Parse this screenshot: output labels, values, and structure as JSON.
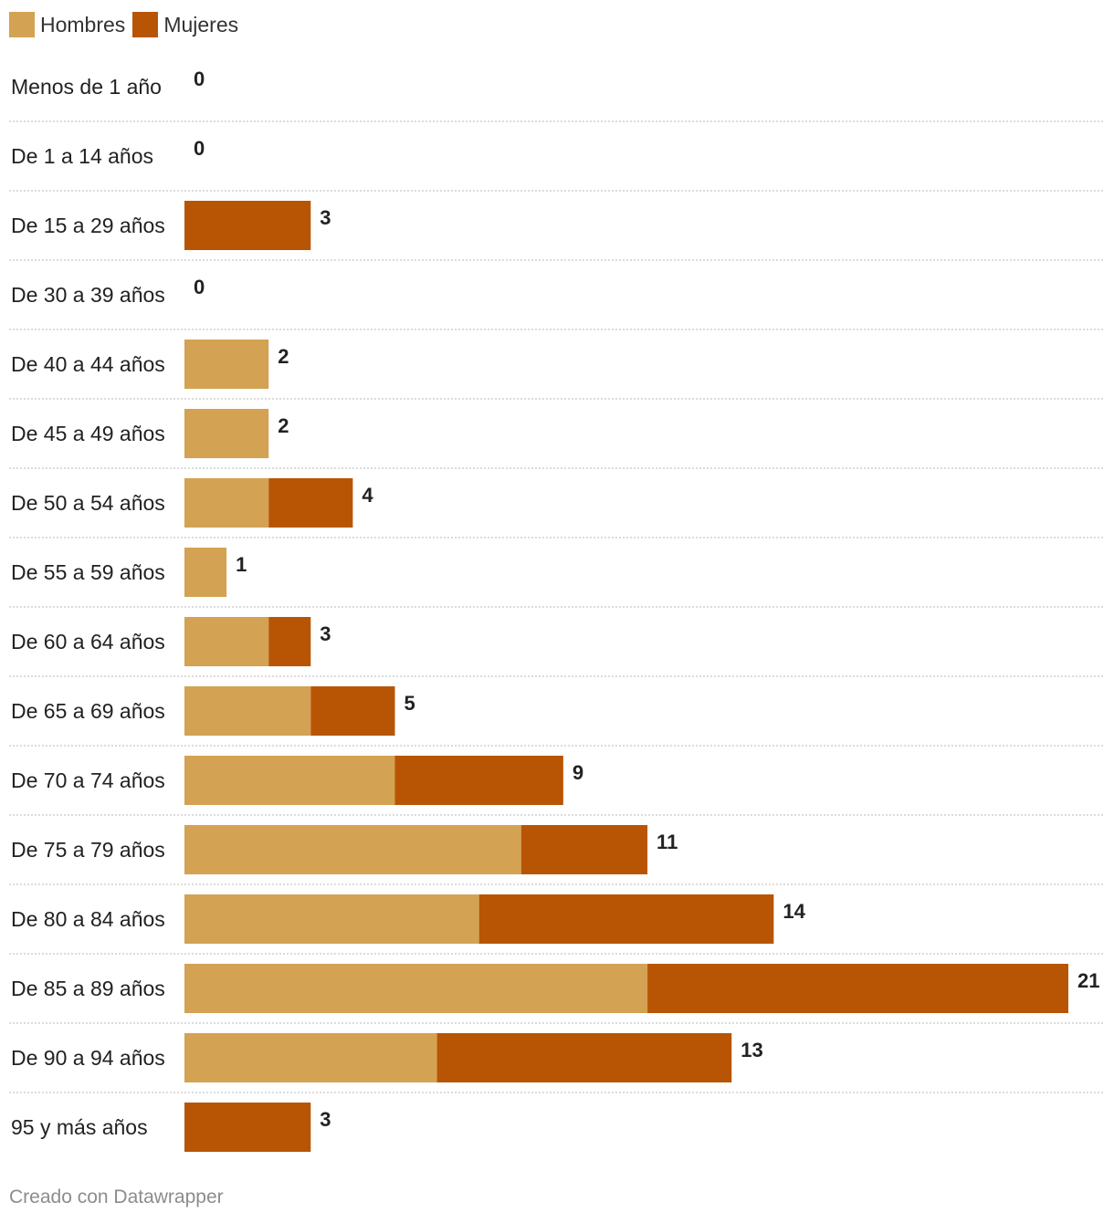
{
  "legend": [
    {
      "name": "Hombres",
      "color": "#d4a253"
    },
    {
      "name": "Mujeres",
      "color": "#b85505"
    }
  ],
  "footer": "Creado con Datawrapper",
  "chart_data": {
    "type": "bar",
    "orientation": "horizontal",
    "stacked": true,
    "categories": [
      "Menos de 1 año",
      "De 1 a 14 años",
      "De 15 a 29 años",
      "De 30 a 39 años",
      "De 40 a 44 años",
      "De 45 a 49 años",
      "De 50 a 54 años",
      "De 55 a 59 años",
      "De 60 a 64 años",
      "De 65 a 69 años",
      "De 70 a 74 años",
      "De 75 a 79 años",
      "De 80 a 84 años",
      "De 85 a 89 años",
      "De 90 a 94 años",
      "95 y más años"
    ],
    "series": [
      {
        "name": "Hombres",
        "color": "#d4a253",
        "values": [
          0,
          0,
          0,
          0,
          2,
          2,
          2,
          1,
          2,
          3,
          5,
          8,
          7,
          11,
          6,
          0
        ]
      },
      {
        "name": "Mujeres",
        "color": "#b85505",
        "values": [
          0,
          0,
          3,
          0,
          0,
          0,
          2,
          0,
          1,
          2,
          4,
          3,
          7,
          10,
          7,
          3
        ]
      }
    ],
    "totals": [
      0,
      0,
      3,
      0,
      2,
      2,
      4,
      1,
      3,
      5,
      9,
      11,
      14,
      21,
      13,
      3
    ],
    "xlim": [
      0,
      21
    ],
    "legend_position": "top-left",
    "grid": false
  }
}
